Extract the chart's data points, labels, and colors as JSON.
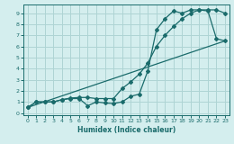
{
  "xlabel": "Humidex (Indice chaleur)",
  "ylabel": "",
  "xlim": [
    -0.5,
    23.5
  ],
  "ylim": [
    -0.2,
    9.8
  ],
  "xticks": [
    0,
    1,
    2,
    3,
    4,
    5,
    6,
    7,
    8,
    9,
    10,
    11,
    12,
    13,
    14,
    15,
    16,
    17,
    18,
    19,
    20,
    21,
    22,
    23
  ],
  "yticks": [
    0,
    1,
    2,
    3,
    4,
    5,
    6,
    7,
    8,
    9
  ],
  "bg_color": "#d4eeee",
  "line_color": "#1a6b6b",
  "grid_color": "#aed4d4",
  "line1_x": [
    0,
    1,
    2,
    3,
    4,
    5,
    6,
    7,
    8,
    9,
    10,
    11,
    12,
    13,
    14,
    15,
    16,
    17,
    18,
    19,
    20,
    21,
    22,
    23
  ],
  "line1_y": [
    0.5,
    1.0,
    1.0,
    1.0,
    1.2,
    1.3,
    1.3,
    0.65,
    1.0,
    0.9,
    0.85,
    1.0,
    1.5,
    1.7,
    3.8,
    7.5,
    8.5,
    9.2,
    9.0,
    9.3,
    9.3,
    9.2,
    6.7,
    6.5
  ],
  "line2_x": [
    0,
    1,
    2,
    3,
    4,
    5,
    6,
    7,
    8,
    9,
    10,
    11,
    12,
    13,
    14,
    15,
    16,
    17,
    18,
    19,
    20,
    21,
    22,
    23
  ],
  "line2_y": [
    0.5,
    1.0,
    1.0,
    1.0,
    1.2,
    1.35,
    1.4,
    1.4,
    1.3,
    1.3,
    1.3,
    2.2,
    2.8,
    3.5,
    4.5,
    6.0,
    7.0,
    7.8,
    8.5,
    9.0,
    9.3,
    9.3,
    9.3,
    9.0
  ],
  "line3_x": [
    0,
    23
  ],
  "line3_y": [
    0.5,
    6.5
  ]
}
